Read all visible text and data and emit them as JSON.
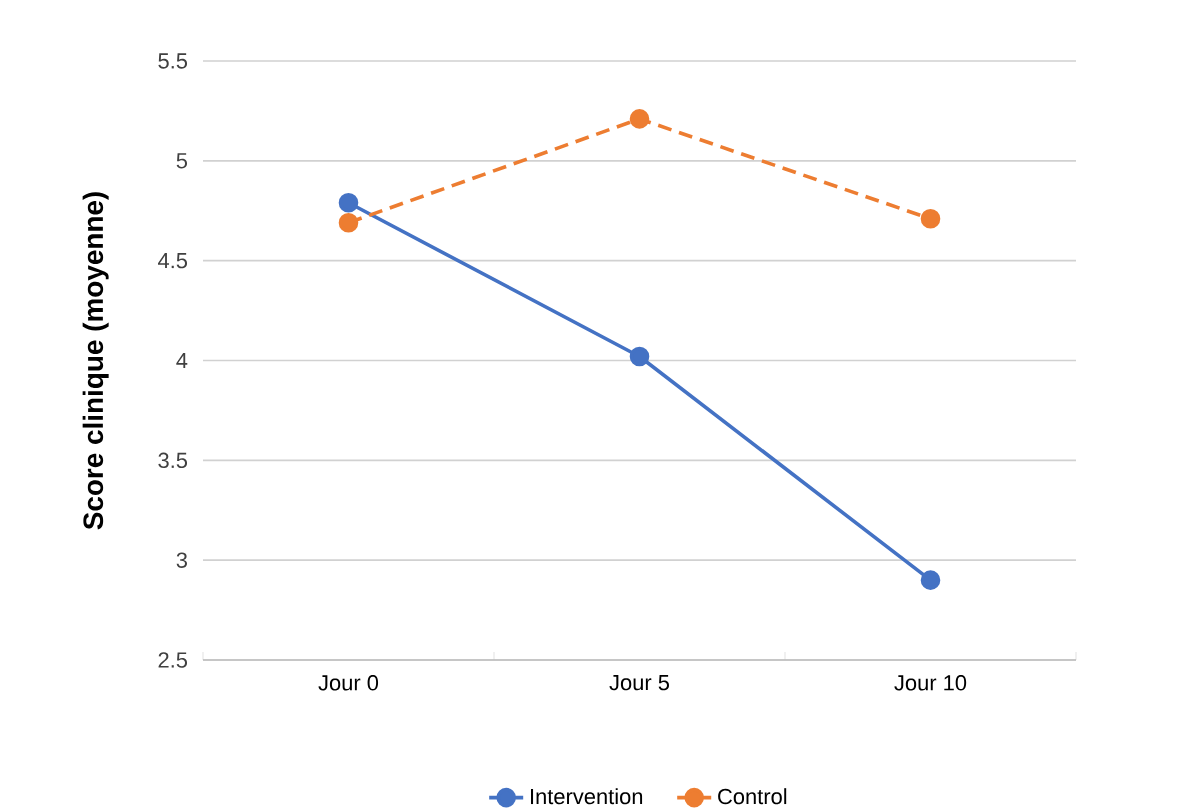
{
  "chart_data": {
    "type": "line",
    "ylabel": "Score clinique (moyenne)",
    "categories": [
      "Jour 0",
      "Jour 5",
      "Jour 10"
    ],
    "series": [
      {
        "name": "Intervention",
        "color": "#4472c4",
        "values": [
          4.79,
          4.02,
          2.9
        ],
        "line_style": "solid"
      },
      {
        "name": "Control",
        "color": "#ed7d31",
        "values": [
          4.69,
          5.21,
          4.71
        ],
        "line_style": "dashed"
      }
    ],
    "ylim": [
      2.5,
      5.5
    ],
    "yticks": [
      2.5,
      3,
      3.5,
      4,
      4.5,
      5,
      5.5
    ],
    "grid": "y",
    "legend": "bottom",
    "marker": "circle"
  }
}
